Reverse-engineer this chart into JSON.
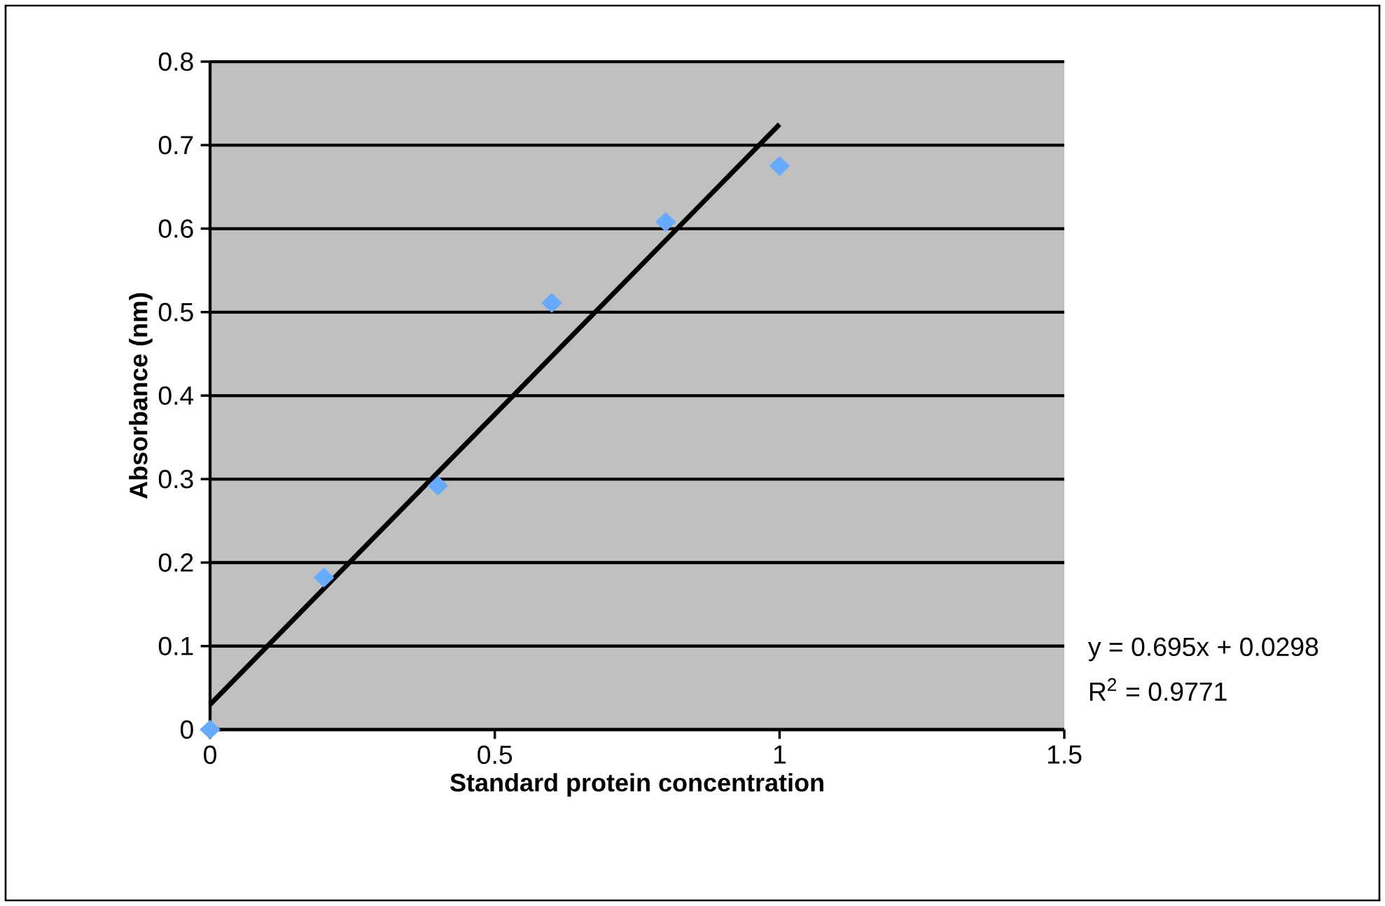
{
  "chart_data": {
    "type": "scatter",
    "xlabel": "Standard protein concentration",
    "ylabel": "Absorbance (nm)",
    "series": [
      {
        "color": "#66aaff",
        "marker": "diamond",
        "x": [
          0,
          0.2,
          0.4,
          0.6,
          0.8,
          1
        ],
        "values": [
          0,
          0.182,
          0.292,
          0.511,
          0.608,
          0.675
        ]
      },
      {
        "type": "line",
        "color": "#000000",
        "marker": "none",
        "x": [
          0,
          1
        ],
        "values": [
          0.03,
          0.725
        ]
      }
    ],
    "xlim": [
      0,
      1.5
    ],
    "ylim": [
      0,
      0.8
    ],
    "xticks": [
      0,
      0.5,
      1,
      1.5
    ],
    "yticks": [
      0,
      0.1,
      0.2,
      0.3,
      0.4,
      0.5,
      0.6,
      0.7,
      0.8
    ],
    "grid": "y",
    "annotations": [
      "y = 0.695x + 0.0298",
      "R$^{2}$ = 0.9771"
    ]
  }
}
